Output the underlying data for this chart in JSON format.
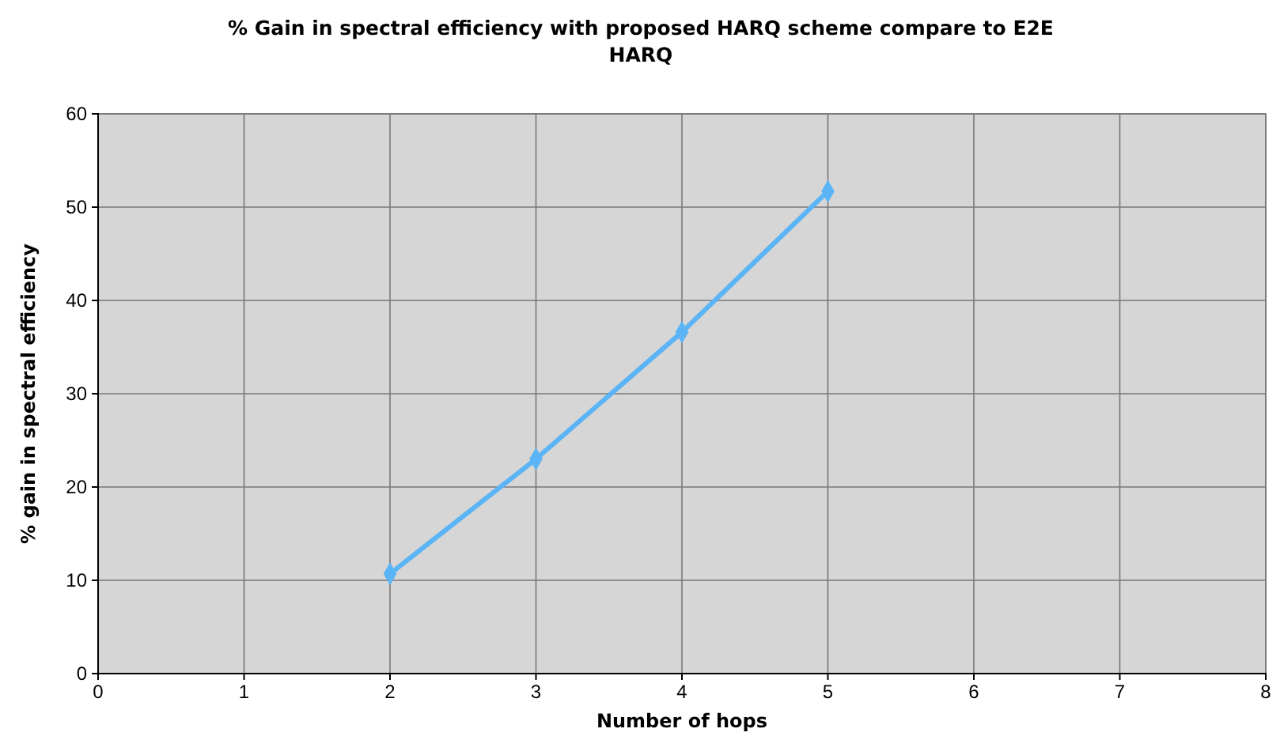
{
  "chart_data": {
    "type": "line",
    "title": "% Gain in spectral efficiency with proposed HARQ scheme compare to E2E HARQ",
    "xlabel": "Number of hops",
    "ylabel": "% gain in spectral efficiency",
    "x": [
      2,
      3,
      4,
      5
    ],
    "series": [
      {
        "color": "#5ab4f5",
        "values": [
          10.7,
          23,
          36.6,
          51.7
        ]
      }
    ],
    "xlim": [
      0,
      8
    ],
    "xticks": [
      0,
      1,
      2,
      3,
      4,
      5,
      6,
      7,
      8
    ],
    "ylim": [
      0,
      60
    ],
    "yticks": [
      0,
      10,
      20,
      30,
      40,
      50,
      60
    ],
    "grid": true,
    "marker": "diamond",
    "line_style": "solid"
  }
}
